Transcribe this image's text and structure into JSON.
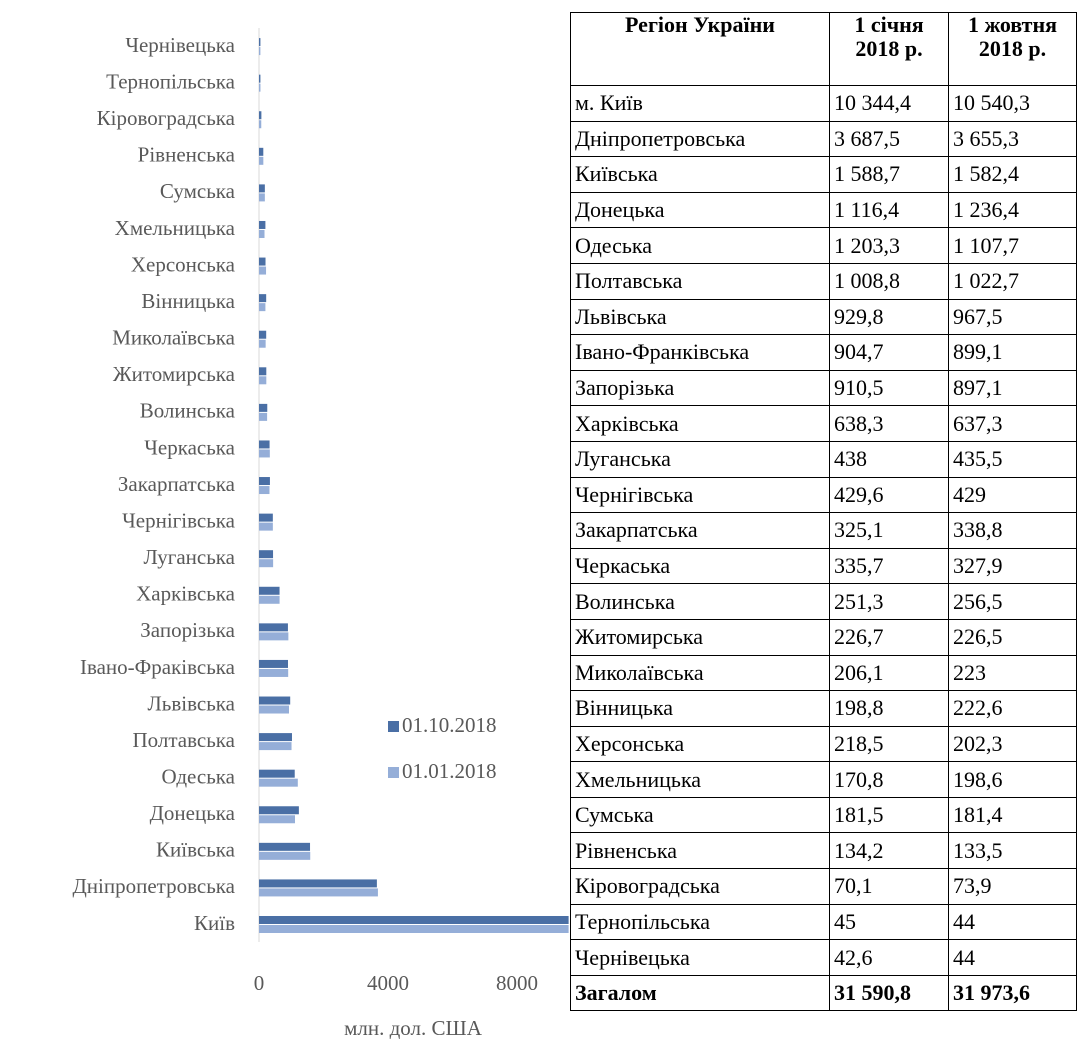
{
  "chart_data": {
    "type": "bar",
    "orientation": "horizontal",
    "categories": [
      "Київ",
      "Дніпропетровська",
      "Київська",
      "Донецька",
      "Одеська",
      "Полтавська",
      "Львівська",
      "Івано-Фраківська",
      "Запорізька",
      "Харківська",
      "Луганська",
      "Чернігівська",
      "Закарпатська",
      "Черкаська",
      "Волинська",
      "Житомирська",
      "Миколаївська",
      "Вінницька",
      "Херсонська",
      "Хмельницька",
      "Сумська",
      "Рівненська",
      "Кіровоградська",
      "Тернопільська",
      "Чернівецька"
    ],
    "series": [
      {
        "name": "01.10.2018",
        "color": "#4a6fa5",
        "values": [
          10540.3,
          3655.3,
          1582.4,
          1236.4,
          1107.7,
          1022.7,
          967.5,
          899.1,
          897.1,
          637.3,
          435.5,
          429,
          338.8,
          327.9,
          256.5,
          226.5,
          223,
          222.6,
          202.3,
          198.6,
          181.4,
          133.5,
          73.9,
          44,
          44
        ]
      },
      {
        "name": "01.01.2018",
        "color": "#95aed8",
        "values": [
          10344.4,
          3687.5,
          1588.7,
          1116.4,
          1203.3,
          1008.8,
          929.8,
          904.7,
          910.5,
          638.3,
          438,
          429.6,
          325.1,
          335.7,
          251.3,
          226.7,
          206.1,
          198.8,
          218.5,
          170.8,
          181.5,
          134.2,
          70.1,
          45,
          42.6
        ]
      }
    ],
    "xlim": [
      0,
      9600
    ],
    "xticks": [
      0,
      4000,
      8000
    ],
    "x_label": "млн. дол. США",
    "legend": "center-right"
  },
  "table": {
    "header": [
      "Регіон України",
      "1 січня 2018 р.",
      "1 жовтня 2018 р."
    ],
    "rows": [
      [
        "м. Київ",
        "10 344,4",
        "10 540,3"
      ],
      [
        "Дніпропетровська",
        "3 687,5",
        "3 655,3"
      ],
      [
        "Київська",
        "1 588,7",
        "1 582,4"
      ],
      [
        "Донецька",
        "1 116,4",
        "1 236,4"
      ],
      [
        "Одеська",
        "1 203,3",
        "1 107,7"
      ],
      [
        "Полтавська",
        "1 008,8",
        "1 022,7"
      ],
      [
        "Львівська",
        "929,8",
        "967,5"
      ],
      [
        "Івано-Франківська",
        "904,7",
        "899,1"
      ],
      [
        "Запорізька",
        "910,5",
        "897,1"
      ],
      [
        "Харківська",
        "638,3",
        "637,3"
      ],
      [
        "Луганська",
        "438",
        "435,5"
      ],
      [
        "Чернігівська",
        "429,6",
        "429"
      ],
      [
        "Закарпатська",
        "325,1",
        "338,8"
      ],
      [
        "Черкаська",
        "335,7",
        "327,9"
      ],
      [
        "Волинська",
        "251,3",
        "256,5"
      ],
      [
        "Житомирська",
        "226,7",
        "226,5"
      ],
      [
        "Миколаївська",
        "206,1",
        "223"
      ],
      [
        "Вінницька",
        "198,8",
        "222,6"
      ],
      [
        "Херсонська",
        "218,5",
        "202,3"
      ],
      [
        "Хмельницька",
        "170,8",
        "198,6"
      ],
      [
        "Сумська",
        "181,5",
        "181,4"
      ],
      [
        "Рівненська",
        "134,2",
        "133,5"
      ],
      [
        "Кіровоградська",
        "70,1",
        "73,9"
      ],
      [
        "Тернопільська",
        "45",
        "44"
      ],
      [
        "Чернівецька",
        "42,6",
        "44"
      ]
    ],
    "total": [
      "Загалом",
      "31 590,8",
      "31 973,6"
    ]
  }
}
